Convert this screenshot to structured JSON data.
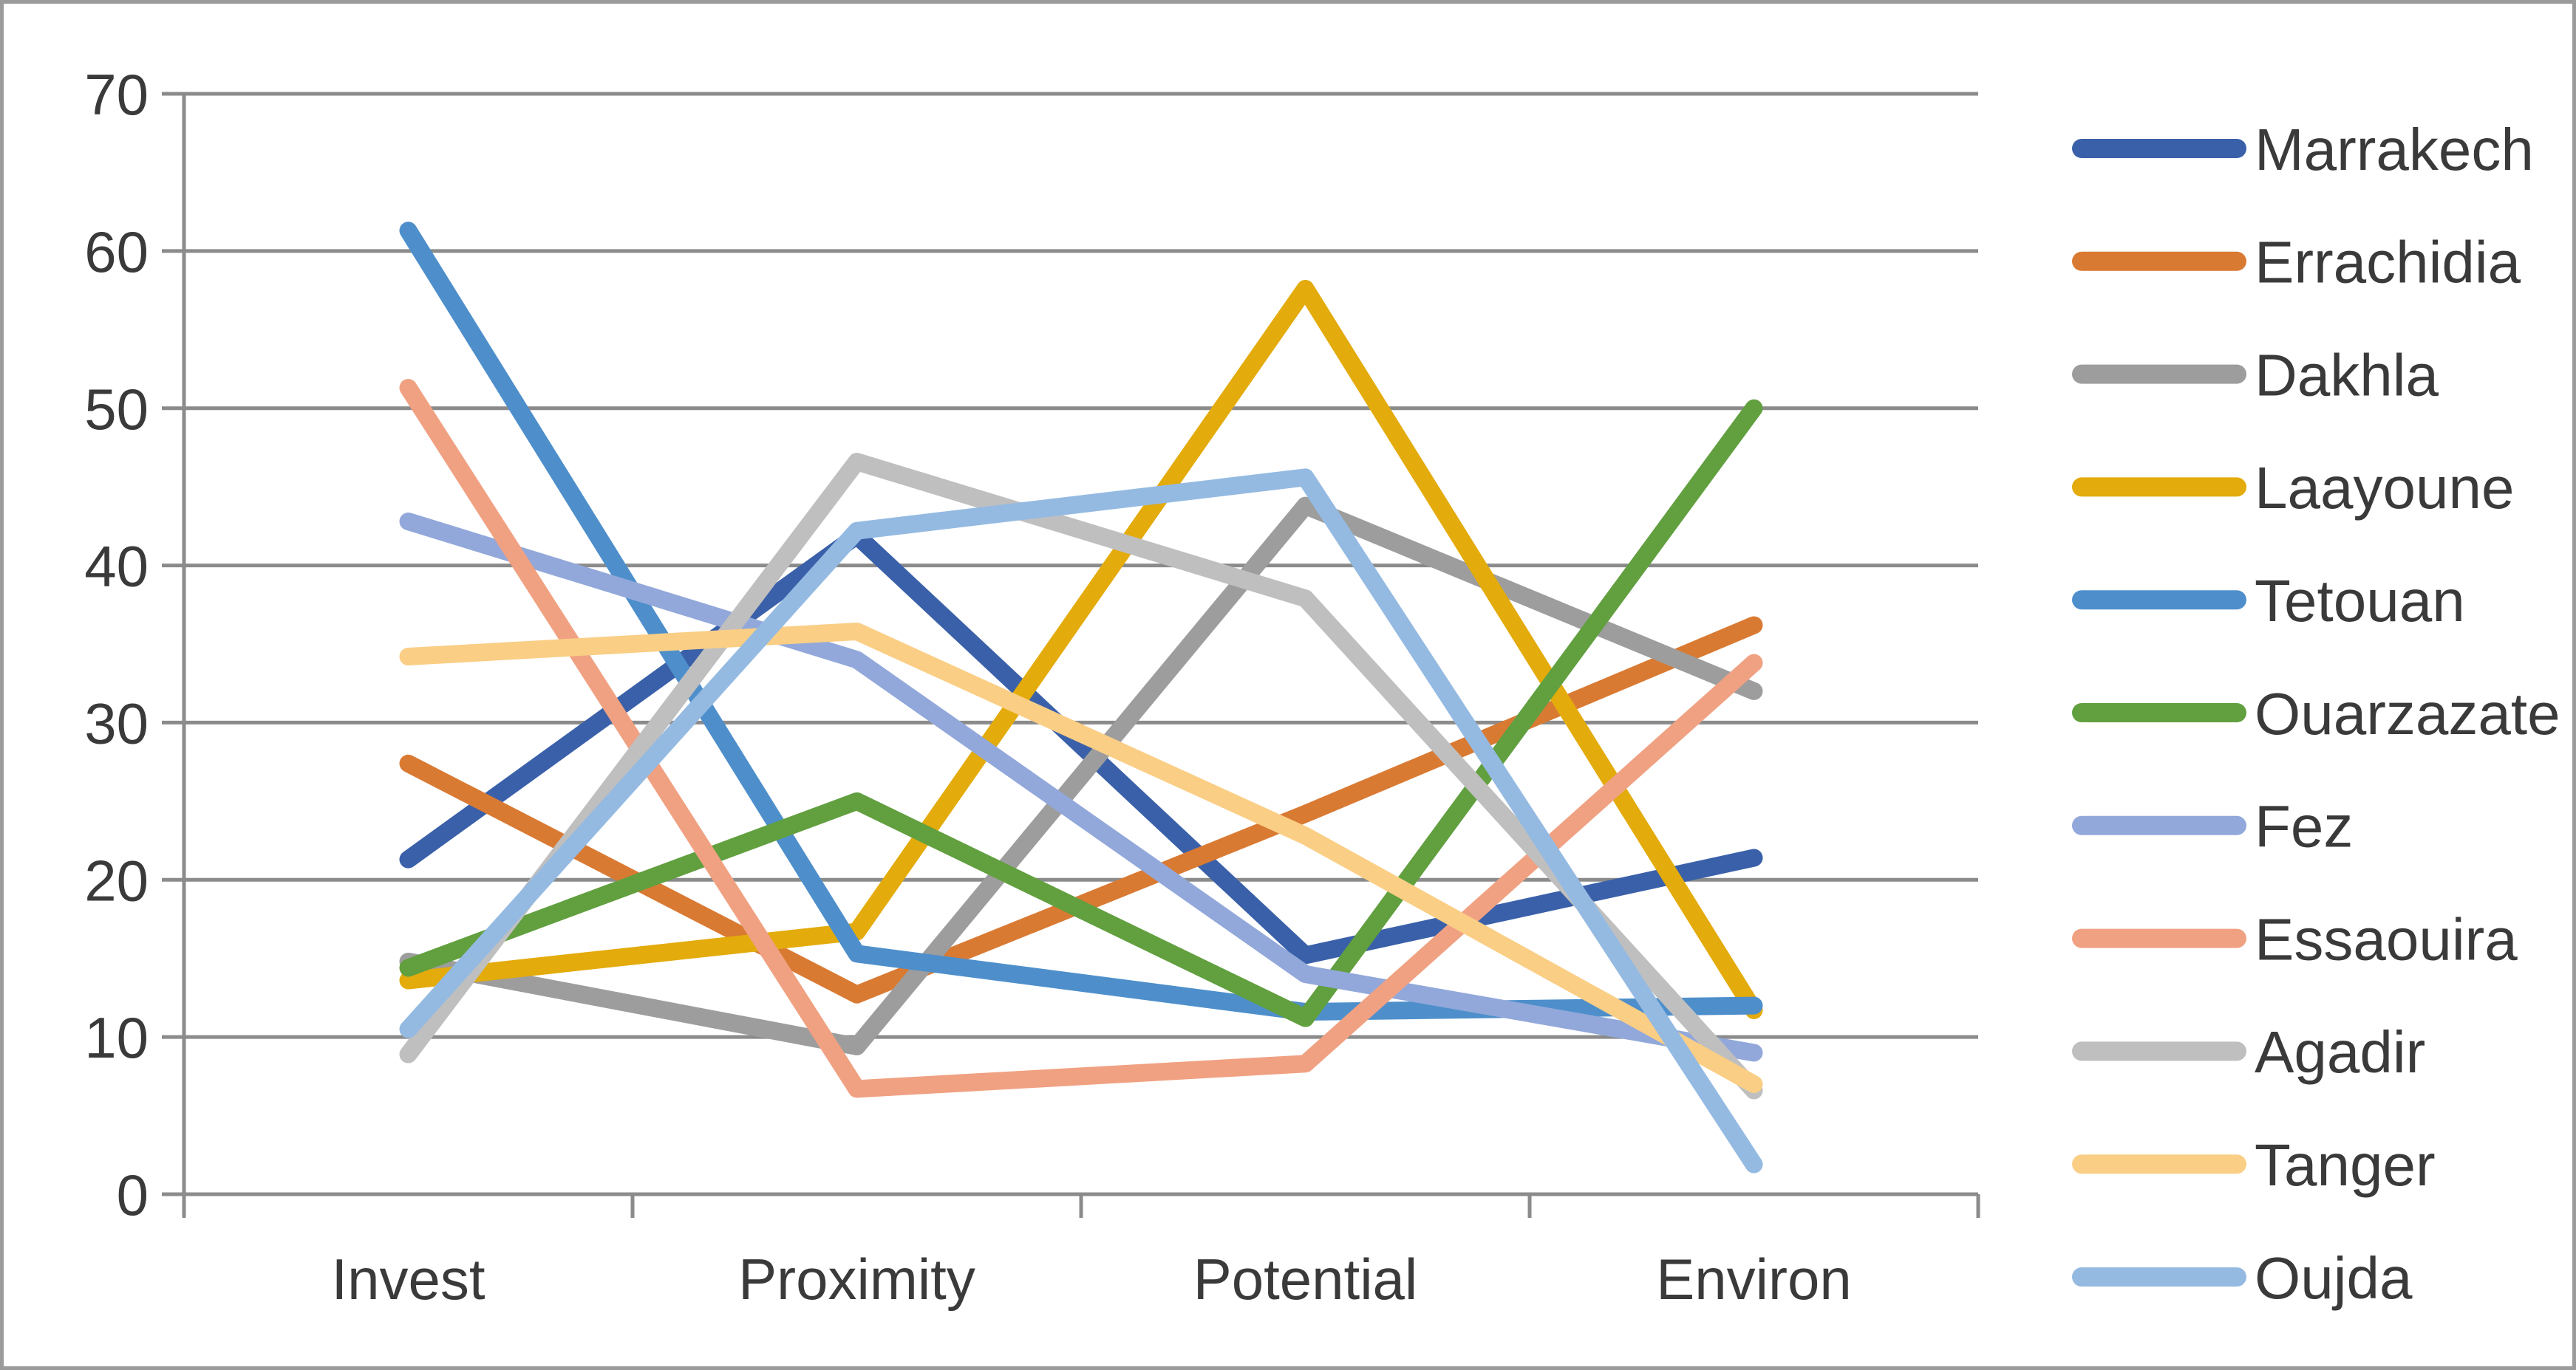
{
  "chart_data": {
    "type": "line",
    "title": "",
    "xlabel": "",
    "ylabel": "",
    "categories": [
      "Invest",
      "Proximity",
      "Potential",
      "Environ"
    ],
    "yticks": [
      0,
      10,
      20,
      30,
      40,
      50,
      60,
      70
    ],
    "ylim": [
      0,
      70
    ],
    "grid": true,
    "legend_position": "right",
    "series": [
      {
        "name": "Marrakech",
        "color": "#3A60A9",
        "values": [
          21.3,
          41.9,
          15.2,
          21.4
        ]
      },
      {
        "name": "Errachidia",
        "color": "#D97A33",
        "values": [
          27.4,
          12.7,
          24.2,
          36.2
        ]
      },
      {
        "name": "Dakhla",
        "color": "#9D9D9D",
        "values": [
          14.8,
          9.4,
          43.8,
          32.0
        ]
      },
      {
        "name": "Laayoune",
        "color": "#E3AB0B",
        "values": [
          13.6,
          16.7,
          57.6,
          11.7
        ]
      },
      {
        "name": "Tetouan",
        "color": "#4E8FCB",
        "values": [
          61.3,
          15.3,
          11.6,
          12.0
        ]
      },
      {
        "name": "Ouarzazate",
        "color": "#619F3F",
        "values": [
          14.4,
          25.0,
          11.2,
          50.0
        ]
      },
      {
        "name": "Fez",
        "color": "#92A8DA",
        "values": [
          42.8,
          34.0,
          14.0,
          9.0
        ]
      },
      {
        "name": "Essaouira",
        "color": "#F0A182",
        "values": [
          51.3,
          6.7,
          8.3,
          33.8
        ]
      },
      {
        "name": "Agadir",
        "color": "#BFBFBF",
        "values": [
          8.9,
          46.6,
          37.9,
          6.6
        ]
      },
      {
        "name": "Tanger",
        "color": "#FACE85",
        "values": [
          34.2,
          35.8,
          22.8,
          7.0
        ]
      },
      {
        "name": "Oujda",
        "color": "#94BAE2",
        "values": [
          10.5,
          42.2,
          45.6,
          1.9
        ]
      }
    ]
  },
  "styles": {
    "grid_color": "#8b8b8b",
    "axis_color": "#8b8b8b",
    "text_color": "#3a3a3a",
    "frame_color": "#9b9b9b",
    "background": "#ffffff"
  }
}
